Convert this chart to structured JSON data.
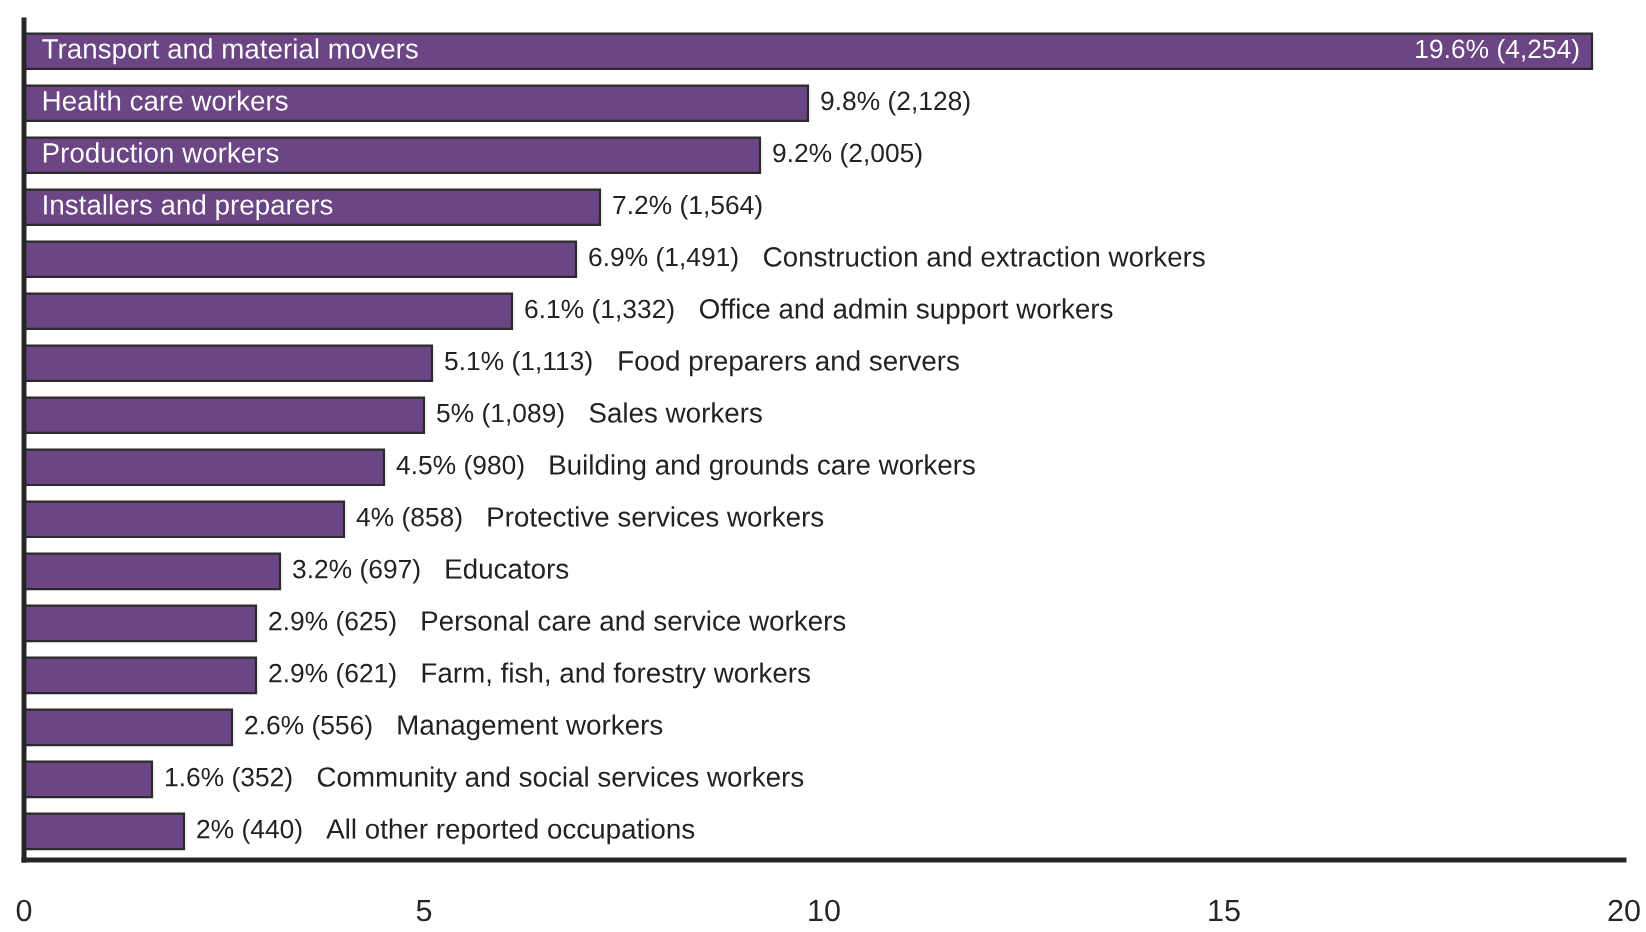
{
  "chart_data": {
    "type": "bar",
    "orientation": "horizontal",
    "categories": [
      "Transport and material movers",
      "Health care workers",
      "Production workers",
      "Installers and preparers",
      "Construction and extraction workers",
      "Office and admin support workers",
      "Food preparers and servers",
      "Sales workers",
      "Building and grounds care workers",
      "Protective services workers",
      "Educators",
      "Personal care and service workers",
      "Farm, fish, and forestry workers",
      "Management workers",
      "Community and social services workers",
      "All other reported occupations"
    ],
    "values": [
      19.6,
      9.8,
      9.2,
      7.2,
      6.9,
      6.1,
      5.1,
      5,
      4.5,
      4,
      3.2,
      2.9,
      2.9,
      2.6,
      1.6,
      2
    ],
    "value_labels": [
      "19.6% (4,254)",
      "9.8% (2,128)",
      "9.2% (2,005)",
      "7.2% (1,564)",
      "6.9% (1,491)",
      "6.1% (1,332)",
      "5.1% (1,113)",
      "5% (1,089)",
      "4.5% (980)",
      "4% (858)",
      "3.2% (697)",
      "2.9% (625)",
      "2.9% (621)",
      "2.6% (556)",
      "1.6% (352)",
      "2% (440)"
    ],
    "color": "#6b4584",
    "xlim": [
      0,
      20
    ],
    "xticks": [
      0,
      5,
      10,
      15,
      20
    ],
    "grid": false,
    "tick_labels": "x"
  }
}
